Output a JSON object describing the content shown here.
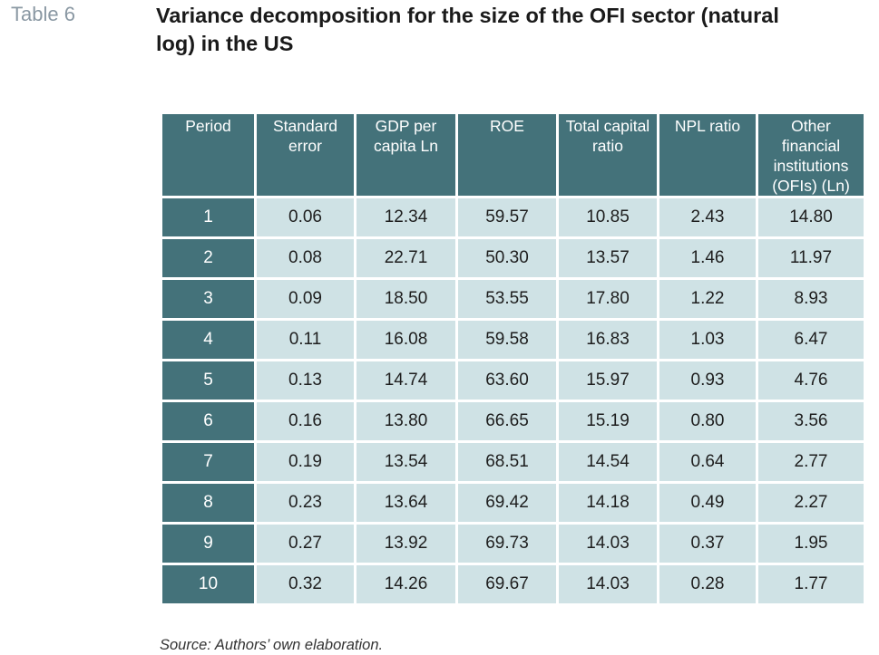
{
  "table_label": "Table 6",
  "title": "Variance decomposition for the size of the OFI sector (natural log) in the US",
  "columns": [
    "Period",
    "Standard error",
    "GDP per capita Ln",
    "ROE",
    "Total capital ratio",
    "NPL ratio",
    "Other financial institutions (OFIs) (Ln)"
  ],
  "rows": [
    [
      "1",
      "0.06",
      "12.34",
      "59.57",
      "10.85",
      "2.43",
      "14.80"
    ],
    [
      "2",
      "0.08",
      "22.71",
      "50.30",
      "13.57",
      "1.46",
      "11.97"
    ],
    [
      "3",
      "0.09",
      "18.50",
      "53.55",
      "17.80",
      "1.22",
      "8.93"
    ],
    [
      "4",
      "0.11",
      "16.08",
      "59.58",
      "16.83",
      "1.03",
      "6.47"
    ],
    [
      "5",
      "0.13",
      "14.74",
      "63.60",
      "15.97",
      "0.93",
      "4.76"
    ],
    [
      "6",
      "0.16",
      "13.80",
      "66.65",
      "15.19",
      "0.80",
      "3.56"
    ],
    [
      "7",
      "0.19",
      "13.54",
      "68.51",
      "14.54",
      "0.64",
      "2.77"
    ],
    [
      "8",
      "0.23",
      "13.64",
      "69.42",
      "14.18",
      "0.49",
      "2.27"
    ],
    [
      "9",
      "0.27",
      "13.92",
      "69.73",
      "14.03",
      "0.37",
      "1.95"
    ],
    [
      "10",
      "0.32",
      "14.26",
      "69.67",
      "14.03",
      "0.28",
      "1.77"
    ]
  ],
  "source": "Source: Authors’ own elaboration.",
  "colors": {
    "header_bg": "#44727a",
    "cell_bg": "#cfe2e5",
    "label_gray": "#8a98a3"
  }
}
